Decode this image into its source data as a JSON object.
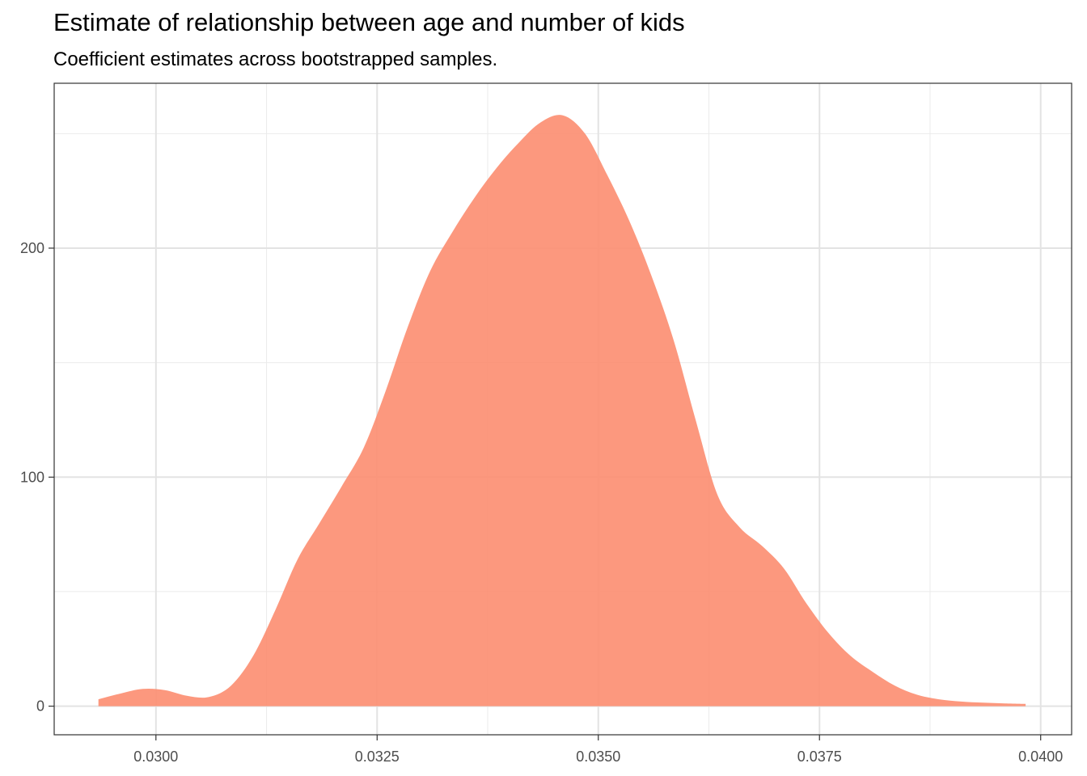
{
  "chart_data": {
    "type": "area",
    "title": "Estimate of relationship between age and number of kids",
    "subtitle": "Coefficient estimates across bootstrapped samples.",
    "xlabel": "",
    "ylabel": "",
    "xlim": [
      0.02885,
      0.04035
    ],
    "ylim": [
      -12.5,
      272
    ],
    "x_ticks": [
      "0.0300",
      "0.0325",
      "0.0350",
      "0.0375",
      "0.0400"
    ],
    "x_tick_values": [
      0.03,
      0.0325,
      0.035,
      0.0375,
      0.04
    ],
    "y_ticks": [
      "0",
      "100",
      "200"
    ],
    "y_tick_values": [
      0,
      100,
      200
    ],
    "grid": true,
    "fill_color": "#fc8d70",
    "fill_opacity": 0.9,
    "series": [
      {
        "x": [
          0.02935,
          0.0296,
          0.02985,
          0.0301,
          0.03035,
          0.0306,
          0.03085,
          0.0311,
          0.03135,
          0.0316,
          0.03185,
          0.0321,
          0.03235,
          0.0326,
          0.03285,
          0.0331,
          0.03335,
          0.0336,
          0.03385,
          0.0341,
          0.03435,
          0.0346,
          0.03485,
          0.0351,
          0.03535,
          0.0356,
          0.03585,
          0.0361,
          0.03635,
          0.0366,
          0.03685,
          0.0371,
          0.03735,
          0.0376,
          0.03785,
          0.0381,
          0.03835,
          0.0386,
          0.03885,
          0.0391,
          0.03935,
          0.0396,
          0.03983
        ],
        "values": [
          3,
          5.5,
          7.5,
          7,
          4.5,
          4,
          9,
          22,
          42,
          64,
          80,
          96,
          113,
          138,
          166,
          190,
          207,
          222,
          235,
          246,
          255,
          258,
          250,
          232,
          212,
          188,
          160,
          125,
          92,
          78,
          70,
          60,
          45,
          32,
          22,
          15,
          9,
          5,
          3,
          2,
          1.5,
          1.2,
          1
        ]
      }
    ]
  }
}
